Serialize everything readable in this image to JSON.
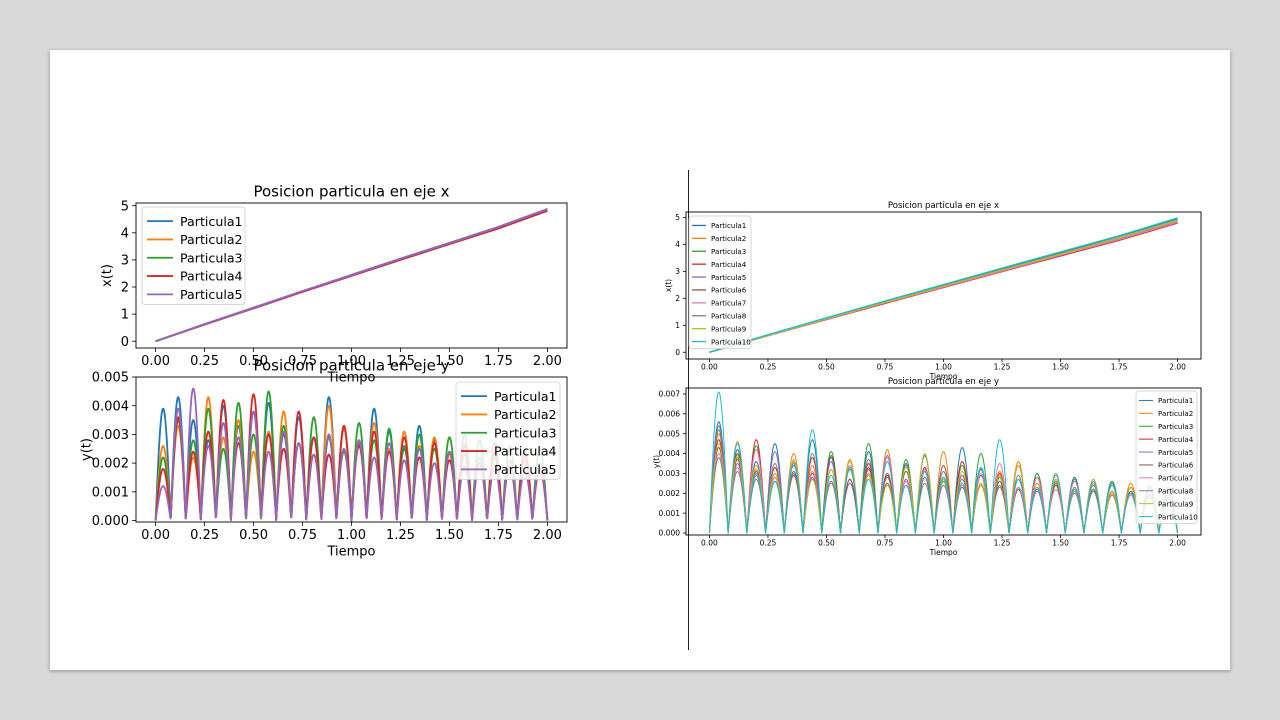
{
  "colors": {
    "slide_background": "#d9d9d9",
    "series_palette": [
      "#1f77b4",
      "#ff7f0e",
      "#2ca02c",
      "#d62728",
      "#9467bd",
      "#8c564b",
      "#e377c2",
      "#7f7f7f",
      "#bcbd22",
      "#17becf"
    ]
  },
  "chart_data": [
    {
      "type": "line",
      "panel": "left-top",
      "title": "Posicion particula en eje x",
      "xlabel": "Tiempo",
      "ylabel": "x(t)",
      "xlim": [
        -0.1,
        2.1
      ],
      "ylim": [
        -0.25,
        5.1
      ],
      "xticks": [
        "0.00",
        "0.25",
        "0.50",
        "0.75",
        "1.00",
        "1.25",
        "1.50",
        "1.75",
        "2.00"
      ],
      "yticks": [
        "0",
        "1",
        "2",
        "3",
        "4",
        "5"
      ],
      "legend_position": "upper-left",
      "grid": false,
      "x": [
        0.0,
        0.25,
        0.5,
        0.75,
        1.0,
        1.25,
        1.5,
        1.75,
        2.0
      ],
      "series": [
        {
          "name": "Particula1",
          "values": [
            0.0,
            0.63,
            1.24,
            1.85,
            2.45,
            3.05,
            3.63,
            4.22,
            4.88
          ]
        },
        {
          "name": "Particula2",
          "values": [
            0.0,
            0.62,
            1.22,
            1.83,
            2.42,
            3.02,
            3.6,
            4.18,
            4.83
          ]
        },
        {
          "name": "Particula3",
          "values": [
            0.0,
            0.62,
            1.23,
            1.84,
            2.44,
            3.04,
            3.62,
            4.2,
            4.86
          ]
        },
        {
          "name": "Particula4",
          "values": [
            0.0,
            0.61,
            1.21,
            1.82,
            2.41,
            3.0,
            3.58,
            4.16,
            4.81
          ]
        },
        {
          "name": "Particula5",
          "values": [
            0.0,
            0.63,
            1.23,
            1.85,
            2.44,
            3.04,
            3.62,
            4.21,
            4.87
          ]
        }
      ]
    },
    {
      "type": "line",
      "panel": "left-bottom",
      "title": "Posicion particula en eje y",
      "xlabel": "Tiempo",
      "ylabel": "y(t)",
      "xlim": [
        -0.1,
        2.1
      ],
      "ylim": [
        -5e-05,
        0.005
      ],
      "xticks": [
        "0.00",
        "0.25",
        "0.50",
        "0.75",
        "1.00",
        "1.25",
        "1.50",
        "1.75",
        "2.00"
      ],
      "yticks": [
        "0.000",
        "0.001",
        "0.002",
        "0.003",
        "0.004",
        "0.005"
      ],
      "legend_position": "upper-right",
      "grid": false,
      "series": [
        {
          "name": "Particula1",
          "peaks": [
            0.0039,
            0.0043,
            0.0035,
            0.0028,
            0.004,
            0.0033,
            0.0038,
            0.0041,
            0.003,
            0.0036,
            0.0029,
            0.0043,
            0.0032,
            0.0027,
            0.0039,
            0.0031,
            0.0025,
            0.0033,
            0.0028,
            0.0024,
            0.003,
            0.0022,
            0.0027,
            0.0021,
            0.0025,
            0.002
          ]
        },
        {
          "name": "Particula2",
          "peaks": [
            0.0026,
            0.0033,
            0.0022,
            0.0043,
            0.0029,
            0.0035,
            0.0024,
            0.0031,
            0.0038,
            0.0027,
            0.0023,
            0.004,
            0.0032,
            0.0028,
            0.0034,
            0.0025,
            0.0031,
            0.0026,
            0.0029,
            0.0023,
            0.0027,
            0.0022,
            0.0026,
            0.0021,
            0.0024,
            0.002
          ]
        },
        {
          "name": "Particula3",
          "peaks": [
            0.0022,
            0.0035,
            0.0028,
            0.0039,
            0.0025,
            0.0041,
            0.003,
            0.0045,
            0.0033,
            0.0027,
            0.0036,
            0.0029,
            0.0024,
            0.0034,
            0.0028,
            0.0032,
            0.0026,
            0.003,
            0.0025,
            0.0029,
            0.0023,
            0.0028,
            0.0022,
            0.0026,
            0.0021,
            0.0025
          ]
        },
        {
          "name": "Particula4",
          "peaks": [
            0.0018,
            0.0036,
            0.0024,
            0.0031,
            0.0042,
            0.0027,
            0.0044,
            0.003,
            0.0025,
            0.0038,
            0.0029,
            0.0023,
            0.0033,
            0.0026,
            0.0031,
            0.0024,
            0.0029,
            0.0022,
            0.0027,
            0.0021,
            0.0026,
            0.002,
            0.0024,
            0.0019,
            0.0023,
            0.0018
          ]
        },
        {
          "name": "Particula5",
          "peaks": [
            0.0012,
            0.0039,
            0.0046,
            0.0026,
            0.0034,
            0.0029,
            0.0038,
            0.0024,
            0.0031,
            0.0027,
            0.0023,
            0.003,
            0.0025,
            0.0028,
            0.0022,
            0.0027,
            0.0021,
            0.0025,
            0.002,
            0.0024,
            0.0019,
            0.0022,
            0.0018,
            0.0021,
            0.0017,
            0.002
          ]
        }
      ]
    },
    {
      "type": "line",
      "panel": "right-top",
      "title": "Posicion particula en eje x",
      "xlabel": "Tiempo",
      "ylabel": "x(t)",
      "xlim": [
        -0.1,
        2.1
      ],
      "ylim": [
        -0.25,
        5.2
      ],
      "xticks": [
        "0.00",
        "0.25",
        "0.50",
        "0.75",
        "1.00",
        "1.25",
        "1.50",
        "1.75",
        "2.00"
      ],
      "yticks": [
        "0",
        "1",
        "2",
        "3",
        "4",
        "5"
      ],
      "legend_position": "upper-left",
      "grid": false,
      "x": [
        0.0,
        0.25,
        0.5,
        0.75,
        1.0,
        1.25,
        1.5,
        1.75,
        2.0
      ],
      "series": [
        {
          "name": "Particula1",
          "values": [
            0.0,
            0.64,
            1.26,
            1.88,
            2.49,
            3.1,
            3.7,
            4.3,
            4.95
          ]
        },
        {
          "name": "Particula2",
          "values": [
            0.0,
            0.62,
            1.23,
            1.84,
            2.43,
            3.03,
            3.62,
            4.2,
            4.85
          ]
        },
        {
          "name": "Particula3",
          "values": [
            0.0,
            0.64,
            1.27,
            1.89,
            2.5,
            3.11,
            3.71,
            4.31,
            4.96
          ]
        },
        {
          "name": "Particula4",
          "values": [
            0.0,
            0.61,
            1.21,
            1.81,
            2.4,
            2.99,
            3.57,
            4.15,
            4.79
          ]
        },
        {
          "name": "Particula5",
          "values": [
            0.0,
            0.63,
            1.25,
            1.86,
            2.46,
            3.06,
            3.65,
            4.24,
            4.89
          ]
        },
        {
          "name": "Particula6",
          "values": [
            0.0,
            0.62,
            1.23,
            1.84,
            2.44,
            3.04,
            3.63,
            4.22,
            4.87
          ]
        },
        {
          "name": "Particula7",
          "values": [
            0.0,
            0.61,
            1.22,
            1.83,
            2.42,
            3.01,
            3.6,
            4.18,
            4.82
          ]
        },
        {
          "name": "Particula8",
          "values": [
            0.0,
            0.63,
            1.24,
            1.85,
            2.45,
            3.05,
            3.64,
            4.23,
            4.88
          ]
        },
        {
          "name": "Particula9",
          "values": [
            0.0,
            0.62,
            1.24,
            1.85,
            2.45,
            3.05,
            3.64,
            4.23,
            4.88
          ]
        },
        {
          "name": "Particula10",
          "values": [
            0.0,
            0.65,
            1.28,
            1.9,
            2.51,
            3.12,
            3.72,
            4.32,
            4.98
          ]
        }
      ]
    },
    {
      "type": "line",
      "panel": "right-bottom",
      "title": "Posicion particula en eje y",
      "xlabel": "Tiempo",
      "ylabel": "y(t)",
      "xlim": [
        -0.1,
        2.1
      ],
      "ylim": [
        -0.0001,
        0.0073
      ],
      "xticks": [
        "0.00",
        "0.25",
        "0.50",
        "0.75",
        "1.00",
        "1.25",
        "1.50",
        "1.75",
        "2.00"
      ],
      "yticks": [
        "0.000",
        "0.001",
        "0.002",
        "0.003",
        "0.004",
        "0.005",
        "0.006",
        "0.007"
      ],
      "legend_position": "upper-right",
      "grid": false,
      "series": [
        {
          "name": "Particula1",
          "peaks": [
            0.0056,
            0.0042,
            0.0036,
            0.0045,
            0.0031,
            0.0047,
            0.0038,
            0.0033,
            0.0041,
            0.0029,
            0.0035,
            0.0039,
            0.0027,
            0.0043,
            0.0032,
            0.0026,
            0.0034,
            0.003,
            0.0024,
            0.0028,
            0.0022,
            0.0026,
            0.0021,
            0.0024,
            0.002
          ]
        },
        {
          "name": "Particula2",
          "peaks": [
            0.005,
            0.0046,
            0.0032,
            0.0028,
            0.004,
            0.0034,
            0.0026,
            0.0037,
            0.003,
            0.0042,
            0.0027,
            0.0033,
            0.0041,
            0.0029,
            0.0024,
            0.0031,
            0.0036,
            0.0025,
            0.0029,
            0.0022,
            0.0027,
            0.0021,
            0.0025,
            0.002,
            0.0023
          ]
        },
        {
          "name": "Particula3",
          "peaks": [
            0.0052,
            0.0038,
            0.0044,
            0.003,
            0.0036,
            0.0027,
            0.0041,
            0.0033,
            0.0045,
            0.0029,
            0.0037,
            0.0031,
            0.0026,
            0.0034,
            0.004,
            0.0028,
            0.0023,
            0.003,
            0.0025,
            0.0027,
            0.0022,
            0.0026,
            0.002,
            0.0024,
            0.0019
          ]
        },
        {
          "name": "Particula4",
          "peaks": [
            0.0047,
            0.004,
            0.0047,
            0.0033,
            0.0029,
            0.0038,
            0.0032,
            0.0027,
            0.0035,
            0.003,
            0.0024,
            0.0033,
            0.0028,
            0.0036,
            0.0025,
            0.003,
            0.0022,
            0.0028,
            0.0026,
            0.0021,
            0.0025,
            0.002,
            0.0023,
            0.0019,
            0.0022
          ]
        },
        {
          "name": "Particula5",
          "peaks": [
            0.0054,
            0.0035,
            0.0029,
            0.0041,
            0.0034,
            0.0028,
            0.0036,
            0.0025,
            0.0032,
            0.0039,
            0.0027,
            0.0031,
            0.0024,
            0.0029,
            0.0033,
            0.0023,
            0.0027,
            0.0021,
            0.0026,
            0.002,
            0.0024,
            0.0019,
            0.0023,
            0.0018,
            0.0022
          ]
        },
        {
          "name": "Particula6",
          "peaks": [
            0.0043,
            0.0037,
            0.0031,
            0.0026,
            0.0035,
            0.003,
            0.0039,
            0.0027,
            0.0033,
            0.0025,
            0.0031,
            0.0028,
            0.0034,
            0.0023,
            0.0029,
            0.0026,
            0.0022,
            0.0028,
            0.0024,
            0.0021,
            0.0025,
            0.002,
            0.0023,
            0.0018,
            0.0021
          ]
        },
        {
          "name": "Particula7",
          "peaks": [
            0.004,
            0.0033,
            0.0042,
            0.0028,
            0.0036,
            0.0031,
            0.0025,
            0.0034,
            0.0029,
            0.0038,
            0.0026,
            0.0032,
            0.0027,
            0.0024,
            0.003,
            0.0035,
            0.0023,
            0.0028,
            0.0022,
            0.0026,
            0.0021,
            0.0024,
            0.0019,
            0.0022,
            0.0018
          ]
        },
        {
          "name": "Particula8",
          "peaks": [
            0.0038,
            0.0031,
            0.0027,
            0.0035,
            0.003,
            0.004,
            0.0026,
            0.0032,
            0.0037,
            0.0028,
            0.0034,
            0.0025,
            0.0031,
            0.0027,
            0.0033,
            0.0024,
            0.0029,
            0.0022,
            0.0027,
            0.0023,
            0.0021,
            0.0025,
            0.002,
            0.0022,
            0.0017
          ]
        },
        {
          "name": "Particula9",
          "peaks": [
            0.0045,
            0.0039,
            0.0034,
            0.003,
            0.0037,
            0.0027,
            0.0032,
            0.0036,
            0.0029,
            0.0024,
            0.0033,
            0.004,
            0.0027,
            0.0031,
            0.0025,
            0.0029,
            0.0034,
            0.0023,
            0.0027,
            0.0021,
            0.0025,
            0.002,
            0.0023,
            0.0019,
            0.0021
          ]
        },
        {
          "name": "Particula10",
          "peaks": [
            0.0071,
            0.0045,
            0.003,
            0.0026,
            0.0035,
            0.0052,
            0.0029,
            0.0033,
            0.0027,
            0.0036,
            0.0024,
            0.0031,
            0.0028,
            0.0025,
            0.0033,
            0.0047,
            0.0027,
            0.0023,
            0.003,
            0.0022,
            0.0026,
            0.0024,
            0.002,
            0.0023,
            0.0019
          ]
        }
      ]
    }
  ]
}
